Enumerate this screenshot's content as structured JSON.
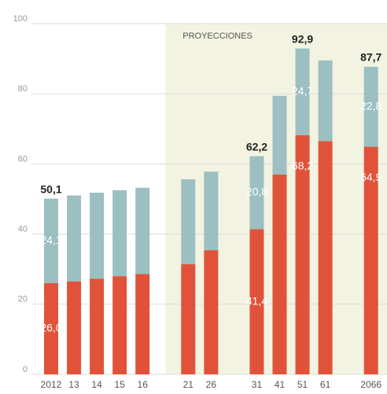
{
  "chart_data": {
    "type": "stacked_bar",
    "categories": [
      "2012",
      "13",
      "14",
      "15",
      "16",
      null,
      "21",
      "26",
      null,
      "31",
      "41",
      "51",
      "61",
      null,
      "2066"
    ],
    "series": [
      {
        "color": "#e0533a",
        "values": [
          26.0,
          26.5,
          27.3,
          28.0,
          28.6,
          null,
          31.4,
          35.4,
          null,
          41.4,
          57.0,
          68.2,
          66.5,
          null,
          64.9
        ],
        "value_labels": [
          "26,0",
          null,
          null,
          null,
          null,
          null,
          null,
          null,
          null,
          "41,4",
          null,
          "68,2",
          null,
          null,
          "64,9"
        ]
      },
      {
        "color": "#9cbfc2",
        "values": [
          24.1,
          24.5,
          24.5,
          24.5,
          24.6,
          null,
          24.2,
          22.4,
          null,
          20.8,
          22.4,
          24.7,
          23.0,
          null,
          22.8
        ],
        "value_labels": [
          "24,1",
          null,
          null,
          null,
          null,
          null,
          null,
          null,
          null,
          "20,8",
          null,
          "24,7",
          null,
          null,
          "22,8"
        ]
      }
    ],
    "annotations": [
      {
        "category_index": 0,
        "text": "50,1"
      },
      {
        "category_index": 9,
        "text": "62,2"
      },
      {
        "category_index": 11,
        "text": "92,9"
      },
      {
        "category_index": 14,
        "text": "87,7"
      }
    ],
    "projection": {
      "label": "PROYECCIONES",
      "start_index": 5,
      "color": "#f3f3e2"
    },
    "ylim": [
      0,
      100
    ],
    "yticks": [
      0,
      20,
      40,
      60,
      80,
      100
    ],
    "grid": true
  }
}
